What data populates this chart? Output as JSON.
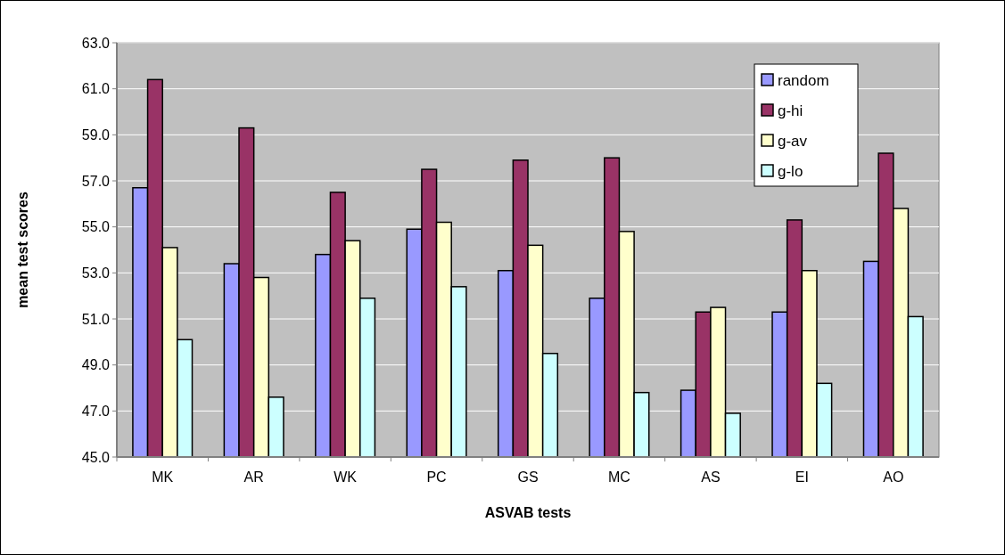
{
  "chart_data": {
    "type": "bar",
    "xlabel": "ASVAB tests",
    "ylabel": "mean test scores",
    "categories": [
      "MK",
      "AR",
      "WK",
      "PC",
      "GS",
      "MC",
      "AS",
      "EI",
      "AO"
    ],
    "series": [
      {
        "name": "random",
        "color": "#9999ff",
        "values": [
          56.7,
          53.4,
          53.8,
          54.9,
          53.1,
          51.9,
          47.9,
          51.3,
          53.5
        ]
      },
      {
        "name": "g-hi",
        "color": "#993366",
        "values": [
          61.4,
          59.3,
          56.5,
          57.5,
          57.9,
          58.0,
          51.3,
          55.3,
          58.2
        ]
      },
      {
        "name": "g-av",
        "color": "#ffffcc",
        "values": [
          54.1,
          52.8,
          54.4,
          55.2,
          54.2,
          54.8,
          51.5,
          53.1,
          55.8
        ]
      },
      {
        "name": "g-lo",
        "color": "#ccffff",
        "values": [
          50.1,
          47.6,
          51.9,
          52.4,
          49.5,
          47.8,
          46.9,
          48.2,
          51.1
        ]
      }
    ],
    "ylim": [
      45,
      63
    ],
    "yticks": [
      {
        "value": 45,
        "label": "45.0"
      },
      {
        "value": 47,
        "label": "47.0"
      },
      {
        "value": 49,
        "label": "49.0"
      },
      {
        "value": 51,
        "label": "51.0"
      },
      {
        "value": 53,
        "label": "53.0"
      },
      {
        "value": 55,
        "label": "55.0"
      },
      {
        "value": 57,
        "label": "57.0"
      },
      {
        "value": 59,
        "label": "59.0"
      },
      {
        "value": 61,
        "label": "61.0"
      },
      {
        "value": 63,
        "label": "63.0"
      }
    ],
    "grid": "y",
    "legend": "top right"
  }
}
